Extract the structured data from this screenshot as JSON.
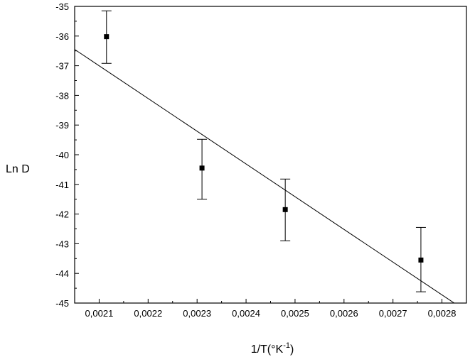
{
  "chart_data": {
    "type": "scatter",
    "title": "",
    "xlabel": "1/T(°K",
    "xlabel_sup": "-1",
    "xlabel_close": ")",
    "ylabel": "Ln D",
    "xlim": [
      0.00205,
      0.00285
    ],
    "ylim": [
      -45,
      -35
    ],
    "grid": false,
    "legend": "none",
    "x_ticks": [
      0.0021,
      0.0022,
      0.0023,
      0.0024,
      0.0025,
      0.0026,
      0.0027,
      0.0028
    ],
    "x_tick_labels": [
      "0,0021",
      "0,0022",
      "0,0023",
      "0,0024",
      "0,0025",
      "0,0026",
      "0,0027",
      "0,0028"
    ],
    "y_ticks": [
      -45,
      -44,
      -43,
      -42,
      -41,
      -40,
      -39,
      -38,
      -37,
      -36,
      -35
    ],
    "y_tick_labels": [
      "-45",
      "-44",
      "-43",
      "-42",
      "-41",
      "-40",
      "-39",
      "-38",
      "-37",
      "-36",
      "-35"
    ],
    "series": [
      {
        "marker": "square",
        "color": "#000000",
        "points": [
          {
            "x": 0.002115,
            "y": -36.02,
            "err_low": -36.92,
            "err_high": -35.15
          },
          {
            "x": 0.00231,
            "y": -40.45,
            "err_low": -41.5,
            "err_high": -39.48
          },
          {
            "x": 0.00248,
            "y": -41.85,
            "err_low": -42.9,
            "err_high": -40.82
          },
          {
            "x": 0.002757,
            "y": -43.55,
            "err_low": -44.62,
            "err_high": -42.45
          }
        ]
      }
    ],
    "fit_line": {
      "color": "#000000",
      "x": [
        0.00205,
        0.002825
      ],
      "y": [
        -36.45,
        -45.0
      ]
    }
  }
}
